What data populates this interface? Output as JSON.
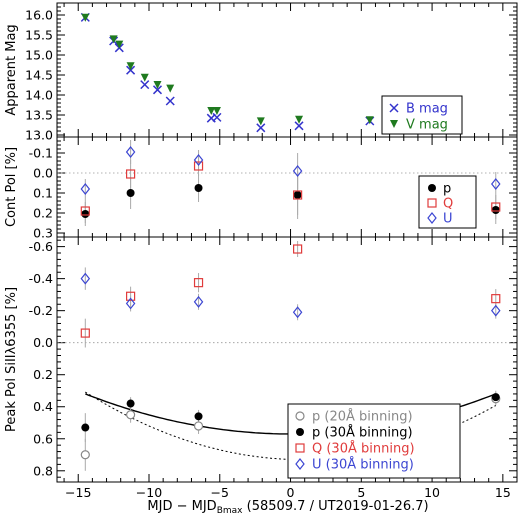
{
  "chart_data": {
    "type": "scatter",
    "xlabel": {
      "pre": "MJD − MJD",
      "sub": "Bmax",
      "post": " (58509.7 / UT2019-01-26.7)"
    },
    "xlim": [
      -16.5,
      16
    ],
    "xticks": [
      -15,
      -10,
      -5,
      0,
      5,
      10,
      15
    ],
    "colors": {
      "B": "#3333cc",
      "V": "#1f7a1f",
      "p": "#000000",
      "p20": "#888888",
      "Q": "#e03c3c",
      "U": "#3c46d2",
      "errorbar": "#aaaaaa",
      "ref": "#999999"
    },
    "panels": [
      {
        "id": "mag",
        "ylabel": "Apparent Mag",
        "ylim": [
          16.3,
          12.95
        ],
        "yticks": [
          13.0,
          13.5,
          14.0,
          14.5,
          15.0,
          15.5,
          16.0
        ],
        "ytick_labels": [
          "13.0",
          "13.5",
          "14.0",
          "14.5",
          "15.0",
          "15.5",
          "16.0"
        ],
        "legend": [
          "B mag",
          "V mag"
        ],
        "series": [
          {
            "name": "B mag",
            "marker": "x",
            "color": "B",
            "x": [
              -14.5,
              -12.5,
              -12.1,
              -11.3,
              -10.3,
              -9.4,
              -8.5,
              -5.6,
              -5.2,
              -2.1,
              0.6,
              5.6,
              8.6,
              11.5
            ],
            "y": [
              15.94,
              15.35,
              15.18,
              14.62,
              14.26,
              14.13,
              13.85,
              13.42,
              13.44,
              13.18,
              13.23,
              13.35,
              13.54,
              13.8
            ]
          },
          {
            "name": "V mag",
            "marker": "triangle-down",
            "color": "V",
            "x": [
              -14.5,
              -12.5,
              -12.1,
              -11.3,
              -10.3,
              -9.4,
              -8.5,
              -5.6,
              -5.2,
              -2.1,
              0.6,
              5.6,
              8.6,
              11.5
            ],
            "y": [
              15.93,
              15.39,
              15.26,
              14.72,
              14.43,
              14.25,
              14.16,
              13.6,
              13.6,
              13.34,
              13.38,
              13.37,
              13.5,
              13.66
            ]
          }
        ]
      },
      {
        "id": "cont",
        "ylabel": "Cont Pol [%]",
        "ylim": [
          -0.18,
          0.32
        ],
        "yticks": [
          -0.1,
          0.0,
          0.1,
          0.2,
          0.3
        ],
        "ytick_labels": [
          "-0.1",
          "0.0",
          "0.1",
          "0.2",
          "0.3"
        ],
        "ref_y": 0,
        "legend": [
          "p",
          "Q",
          "U"
        ],
        "series": [
          {
            "name": "p",
            "marker": "filled-circle",
            "color": "p",
            "x": [
              -14.5,
              -11.3,
              -6.5,
              0.5,
              14.5
            ],
            "y": [
              0.205,
              0.1,
              0.075,
              0.11,
              0.185
            ],
            "err": [
              0.06,
              0.08,
              0.07,
              0.12,
              0.07
            ]
          },
          {
            "name": "Q",
            "marker": "square",
            "color": "Q",
            "x": [
              -14.5,
              -11.3,
              -6.5,
              0.5,
              14.5
            ],
            "y": [
              0.19,
              0.005,
              -0.035,
              0.11,
              0.17
            ],
            "err": [
              0.06,
              0.07,
              0.05,
              0.1,
              0.06
            ]
          },
          {
            "name": "U",
            "marker": "diamond",
            "color": "U",
            "x": [
              -14.5,
              -11.3,
              -6.5,
              0.5,
              14.5
            ],
            "y": [
              0.08,
              -0.105,
              -0.065,
              -0.01,
              0.055
            ],
            "err": [
              0.05,
              0.06,
              0.05,
              0.09,
              0.06
            ]
          }
        ]
      },
      {
        "id": "peak",
        "ylabel": "Peak Pol SiIIλ6355 [%]",
        "ylim": [
          -0.66,
          0.87
        ],
        "yticks": [
          -0.6,
          -0.4,
          -0.2,
          0.0,
          0.2,
          0.4,
          0.6,
          0.8
        ],
        "ytick_labels": [
          "-0.6",
          "-0.4",
          "-0.2",
          "0.0",
          "0.2",
          "0.4",
          "0.6",
          "0.8"
        ],
        "ref_y": 0,
        "legend": [
          "p (20Å binning)",
          "p (30Å binning)",
          "Q (30Å binning)",
          "U (30Å binning)"
        ],
        "curves": [
          {
            "style": "solid",
            "color": "p",
            "x_peak": 0,
            "y_peak": 0.57,
            "curvature": -0.00119
          },
          {
            "style": "dotted",
            "color": "p",
            "x_peak": 0.8,
            "y_peak": 0.73,
            "curvature": -0.0018
          }
        ],
        "series": [
          {
            "name": "p (20Å binning)",
            "marker": "open-circle",
            "color": "p20",
            "x": [
              -14.5,
              -11.3,
              -6.5,
              0.5,
              14.5
            ],
            "y": [
              0.7,
              0.45,
              0.52,
              0.785,
              0.35
            ],
            "err": [
              0.1,
              0.05,
              0.05,
              0.05,
              0.04
            ]
          },
          {
            "name": "p (30Å binning)",
            "marker": "filled-circle",
            "color": "p",
            "x": [
              -14.5,
              -11.3,
              -6.5,
              0.5,
              14.5
            ],
            "y": [
              0.53,
              0.38,
              0.46,
              0.62,
              0.34
            ],
            "err": [
              0.09,
              0.04,
              0.04,
              0.04,
              0.04
            ]
          },
          {
            "name": "Q (30Å binning)",
            "marker": "square",
            "color": "Q",
            "x": [
              -14.5,
              -11.3,
              -6.5,
              0.5,
              14.5
            ],
            "y": [
              -0.06,
              -0.29,
              -0.375,
              -0.585,
              -0.275
            ],
            "err": [
              0.09,
              0.06,
              0.06,
              0.05,
              0.06
            ]
          },
          {
            "name": "U (30Å binning)",
            "marker": "diamond",
            "color": "U",
            "x": [
              -14.5,
              -11.3,
              -6.5,
              0.5,
              14.5
            ],
            "y": [
              -0.4,
              -0.245,
              -0.255,
              -0.19,
              -0.2
            ],
            "err": [
              0.07,
              0.05,
              0.05,
              0.05,
              0.05
            ]
          }
        ]
      }
    ]
  }
}
